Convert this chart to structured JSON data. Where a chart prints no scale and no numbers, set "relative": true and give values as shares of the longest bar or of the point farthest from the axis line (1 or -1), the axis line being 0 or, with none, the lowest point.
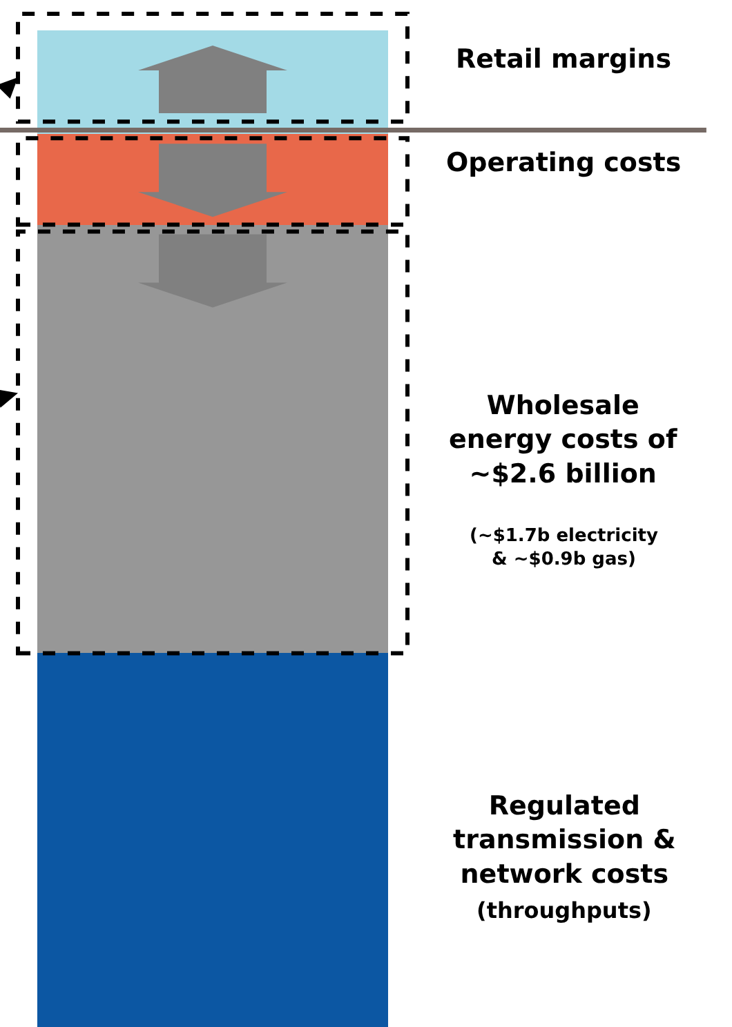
{
  "chart_data": {
    "type": "bar",
    "stacked": true,
    "relative": true,
    "legend": false,
    "categories": [
      null
    ],
    "series": [
      {
        "name": "Regulated transmission & network costs (throughputs)",
        "color": "#0c57a3",
        "values": [
          0.375
        ]
      },
      {
        "name": "Wholesale energy costs of ~$2.6 billion (~$1.7b electricity & ~$0.9b gas)",
        "color": "#979797",
        "values": [
          0.43
        ]
      },
      {
        "name": "Operating costs",
        "color": "#e8684a",
        "values": [
          0.091
        ]
      },
      {
        "name": "Retail margins",
        "color": "#a3dae6",
        "values": [
          0.104
        ]
      }
    ],
    "ref_lines": [
      {
        "axis": "y",
        "value": 0.9,
        "color": "#766a65"
      }
    ]
  }
}
